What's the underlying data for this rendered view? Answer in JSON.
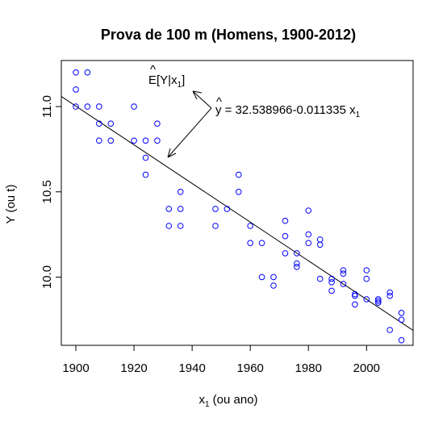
{
  "chart_data": {
    "type": "scatter",
    "title": "Prova de 100 m (Homens, 1900-2012)",
    "xlabel_main": "x",
    "xlabel_sub": "1",
    "xlabel_rest": " (ou ano)",
    "ylabel": "Y  (ou t)",
    "xlim": [
      1895,
      2016
    ],
    "ylim": [
      9.6,
      11.27
    ],
    "xticks": [
      "1900",
      "1920",
      "1940",
      "1960",
      "1980",
      "2000"
    ],
    "yticks": [
      "10.0",
      "10.5",
      "11.0"
    ],
    "point_color": "#0000ff",
    "line_color": "#000000",
    "grid": false,
    "points": [
      {
        "x": 1900,
        "y": 11.2
      },
      {
        "x": 1900,
        "y": 11.1
      },
      {
        "x": 1900,
        "y": 11.0
      },
      {
        "x": 1904,
        "y": 11.2
      },
      {
        "x": 1904,
        "y": 11.0
      },
      {
        "x": 1908,
        "y": 11.0
      },
      {
        "x": 1908,
        "y": 10.9
      },
      {
        "x": 1908,
        "y": 10.8
      },
      {
        "x": 1912,
        "y": 10.9
      },
      {
        "x": 1912,
        "y": 10.8
      },
      {
        "x": 1920,
        "y": 11.0
      },
      {
        "x": 1920,
        "y": 10.8
      },
      {
        "x": 1924,
        "y": 10.8
      },
      {
        "x": 1924,
        "y": 10.7
      },
      {
        "x": 1924,
        "y": 10.6
      },
      {
        "x": 1928,
        "y": 10.9
      },
      {
        "x": 1928,
        "y": 10.8
      },
      {
        "x": 1932,
        "y": 10.4
      },
      {
        "x": 1932,
        "y": 10.3
      },
      {
        "x": 1936,
        "y": 10.5
      },
      {
        "x": 1936,
        "y": 10.4
      },
      {
        "x": 1936,
        "y": 10.3
      },
      {
        "x": 1948,
        "y": 10.4
      },
      {
        "x": 1948,
        "y": 10.3
      },
      {
        "x": 1952,
        "y": 10.4
      },
      {
        "x": 1956,
        "y": 10.6
      },
      {
        "x": 1956,
        "y": 10.5
      },
      {
        "x": 1960,
        "y": 10.3
      },
      {
        "x": 1960,
        "y": 10.2
      },
      {
        "x": 1964,
        "y": 10.2
      },
      {
        "x": 1964,
        "y": 10.0
      },
      {
        "x": 1968,
        "y": 10.0
      },
      {
        "x": 1968,
        "y": 9.95
      },
      {
        "x": 1972,
        "y": 10.33
      },
      {
        "x": 1972,
        "y": 10.24
      },
      {
        "x": 1972,
        "y": 10.14
      },
      {
        "x": 1976,
        "y": 10.14
      },
      {
        "x": 1976,
        "y": 10.08
      },
      {
        "x": 1976,
        "y": 10.06
      },
      {
        "x": 1980,
        "y": 10.39
      },
      {
        "x": 1980,
        "y": 10.25
      },
      {
        "x": 1980,
        "y": 10.2
      },
      {
        "x": 1984,
        "y": 10.22
      },
      {
        "x": 1984,
        "y": 10.19
      },
      {
        "x": 1984,
        "y": 9.99
      },
      {
        "x": 1988,
        "y": 9.99
      },
      {
        "x": 1988,
        "y": 9.97
      },
      {
        "x": 1988,
        "y": 9.92
      },
      {
        "x": 1992,
        "y": 10.04
      },
      {
        "x": 1992,
        "y": 10.02
      },
      {
        "x": 1992,
        "y": 9.96
      },
      {
        "x": 1996,
        "y": 9.89
      },
      {
        "x": 1996,
        "y": 9.9
      },
      {
        "x": 1996,
        "y": 9.84
      },
      {
        "x": 2000,
        "y": 10.04
      },
      {
        "x": 2000,
        "y": 9.99
      },
      {
        "x": 2000,
        "y": 9.87
      },
      {
        "x": 2004,
        "y": 9.87
      },
      {
        "x": 2004,
        "y": 9.86
      },
      {
        "x": 2004,
        "y": 9.85
      },
      {
        "x": 2008,
        "y": 9.91
      },
      {
        "x": 2008,
        "y": 9.89
      },
      {
        "x": 2008,
        "y": 9.69
      },
      {
        "x": 2012,
        "y": 9.79
      },
      {
        "x": 2012,
        "y": 9.75
      },
      {
        "x": 2012,
        "y": 9.63
      }
    ],
    "regression": {
      "intercept": 32.538966,
      "slope": -0.011335
    },
    "annotations": {
      "expect_main": "E[Y|x",
      "expect_sub": "1",
      "expect_close": "]",
      "equation_lhs": "y",
      "equation_main": " = 32.538966-0.011335 x",
      "equation_sub": "1"
    }
  }
}
